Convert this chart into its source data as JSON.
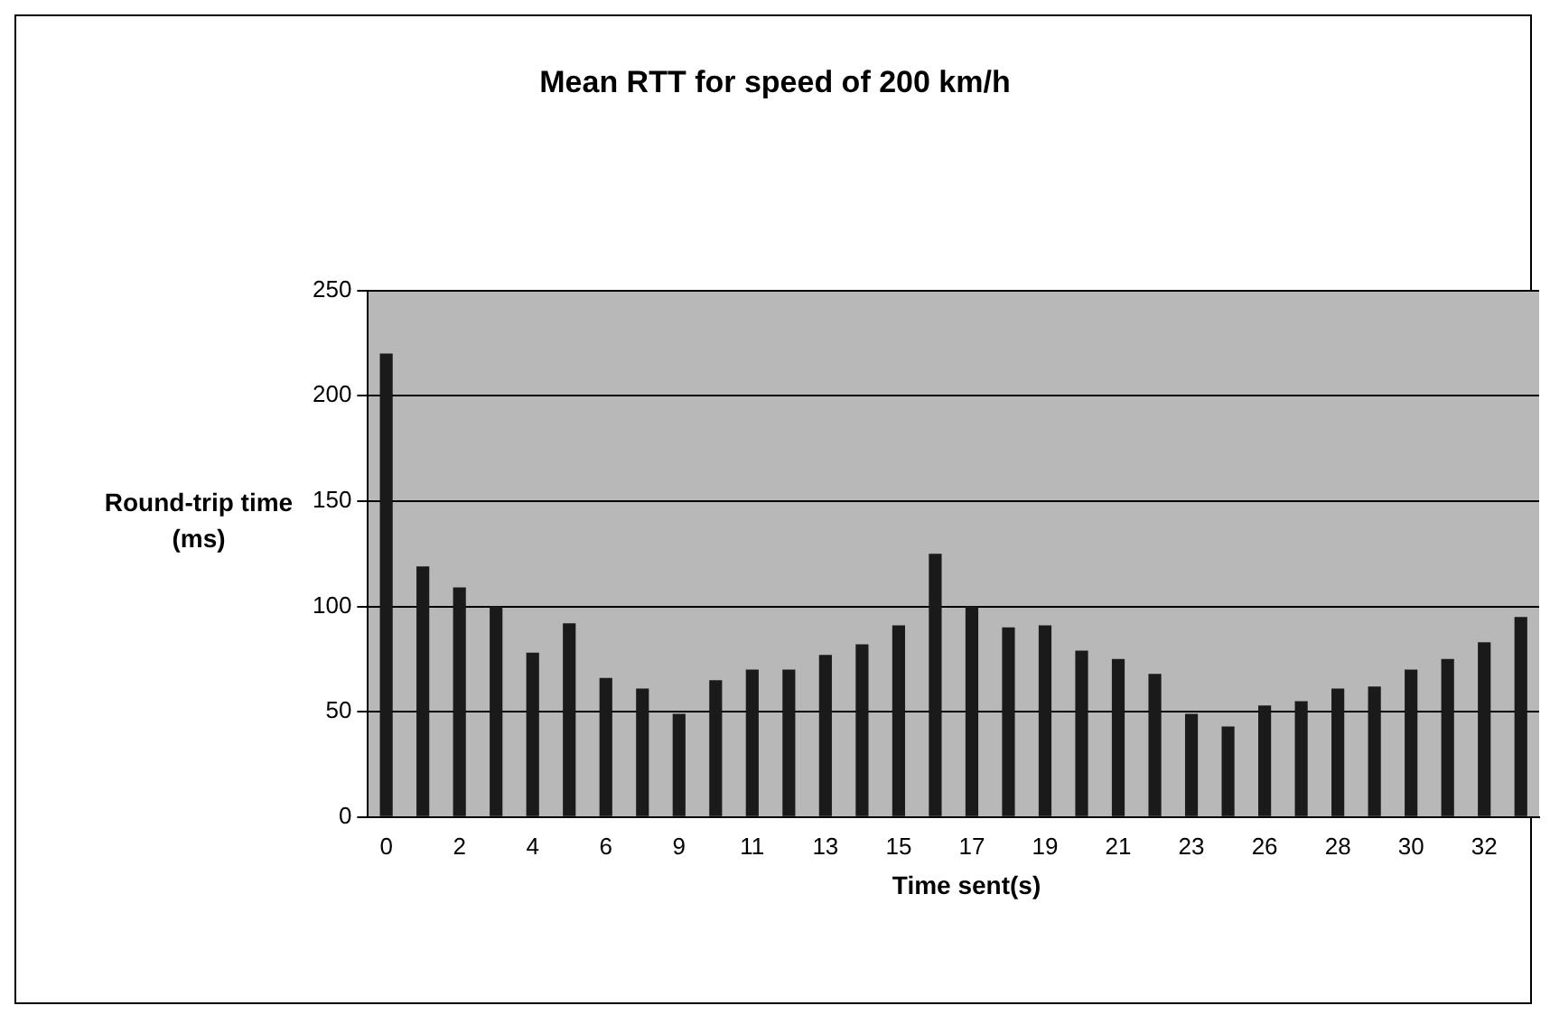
{
  "chart_data": {
    "type": "bar",
    "title": "Mean RTT for speed of 200 km/h",
    "xlabel": "Time sent(s)",
    "ylabel": "Round-trip time (ms)",
    "categories": [
      "0",
      null,
      "2",
      null,
      "4",
      null,
      "6",
      null,
      "9",
      null,
      "11",
      null,
      "13",
      null,
      "15",
      null,
      "17",
      null,
      "19",
      null,
      "21",
      null,
      "23",
      null,
      "26",
      null,
      "28",
      null,
      "30",
      null,
      "32",
      null
    ],
    "values": [
      220,
      119,
      109,
      100,
      78,
      92,
      66,
      61,
      49,
      65,
      70,
      70,
      77,
      82,
      91,
      125,
      100,
      90,
      91,
      79,
      75,
      68,
      49,
      43,
      53,
      55,
      61,
      62,
      70,
      75,
      83,
      95
    ],
    "color": "#1a1a1a",
    "ylim": [
      0,
      250
    ],
    "yticks": [
      0,
      50,
      100,
      150,
      200,
      250
    ],
    "grid": "y"
  }
}
